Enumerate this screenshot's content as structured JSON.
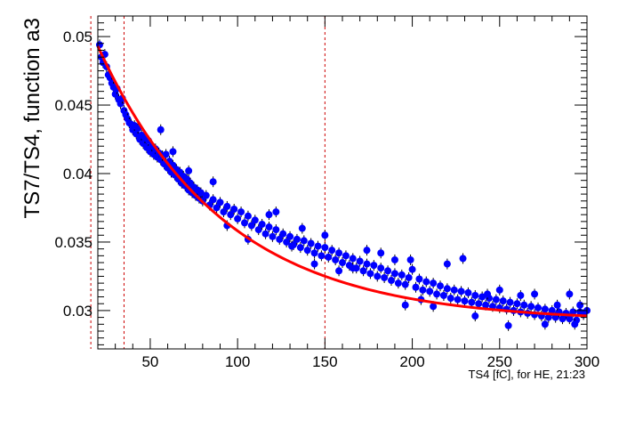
{
  "chart_data": {
    "type": "scatter",
    "title": "",
    "xlabel": "TS4 [fC], for HE, 21:23",
    "ylabel": "TS7/TS4, function a3",
    "xlim": [
      20,
      300
    ],
    "ylim": [
      0.0272,
      0.0515
    ],
    "x_ticks": [
      50,
      100,
      150,
      200,
      250,
      300
    ],
    "y_ticks": [
      0.03,
      0.035,
      0.04,
      0.045,
      0.05
    ],
    "x_tick_labels": [
      "50",
      "100",
      "150",
      "200",
      "250",
      "300"
    ],
    "y_tick_labels": [
      "0.03",
      "0.035",
      "0.04",
      "0.045",
      "0.05"
    ],
    "grid": false,
    "colors": {
      "points": "#0000ff",
      "fit": "#ff0000",
      "markers": "#cc0000"
    },
    "vertical_markers": [
      16,
      35,
      150
    ],
    "fit": {
      "model": "exponential",
      "x_range": [
        20,
        300
      ],
      "y_at_start": 0.0493,
      "asymptote": 0.0292,
      "decay_length": 72
    },
    "points": [
      [
        21,
        0.0494
      ],
      [
        22,
        0.0485
      ],
      [
        23,
        0.0481
      ],
      [
        24,
        0.0487
      ],
      [
        25,
        0.0478
      ],
      [
        26,
        0.0472
      ],
      [
        27,
        0.047
      ],
      [
        28,
        0.0466
      ],
      [
        29,
        0.0463
      ],
      [
        30,
        0.0458
      ],
      [
        31,
        0.0462
      ],
      [
        32,
        0.0454
      ],
      [
        33,
        0.0451
      ],
      [
        34,
        0.0455
      ],
      [
        35,
        0.0446
      ],
      [
        36,
        0.0443
      ],
      [
        37,
        0.044
      ],
      [
        38,
        0.0437
      ],
      [
        39,
        0.0436
      ],
      [
        40,
        0.0432
      ],
      [
        41,
        0.0435
      ],
      [
        42,
        0.0429
      ],
      [
        43,
        0.0433
      ],
      [
        44,
        0.0425
      ],
      [
        45,
        0.0428
      ],
      [
        46,
        0.0422
      ],
      [
        47,
        0.0426
      ],
      [
        48,
        0.0419
      ],
      [
        49,
        0.0424
      ],
      [
        50,
        0.0416
      ],
      [
        51,
        0.042
      ],
      [
        52,
        0.0414
      ],
      [
        53,
        0.0418
      ],
      [
        54,
        0.0412
      ],
      [
        55,
        0.0415
      ],
      [
        56,
        0.041
      ],
      [
        57,
        0.0413
      ],
      [
        58,
        0.0407
      ],
      [
        59,
        0.0414
      ],
      [
        60,
        0.0404
      ],
      [
        61,
        0.0409
      ],
      [
        62,
        0.0401
      ],
      [
        63,
        0.0406
      ],
      [
        64,
        0.0399
      ],
      [
        65,
        0.0403
      ],
      [
        66,
        0.0396
      ],
      [
        67,
        0.0401
      ],
      [
        68,
        0.0393
      ],
      [
        69,
        0.0398
      ],
      [
        70,
        0.0391
      ],
      [
        71,
        0.0396
      ],
      [
        72,
        0.0388
      ],
      [
        73,
        0.0393
      ],
      [
        74,
        0.0386
      ],
      [
        75,
        0.039
      ],
      [
        76,
        0.0384
      ],
      [
        77,
        0.0388
      ],
      [
        78,
        0.0382
      ],
      [
        79,
        0.0386
      ],
      [
        80,
        0.038
      ],
      [
        82,
        0.0384
      ],
      [
        84,
        0.0377
      ],
      [
        86,
        0.0381
      ],
      [
        88,
        0.0375
      ],
      [
        90,
        0.0379
      ],
      [
        92,
        0.0372
      ],
      [
        94,
        0.0376
      ],
      [
        96,
        0.037
      ],
      [
        98,
        0.0374
      ],
      [
        100,
        0.0367
      ],
      [
        102,
        0.0372
      ],
      [
        104,
        0.0364
      ],
      [
        106,
        0.0369
      ],
      [
        108,
        0.0362
      ],
      [
        110,
        0.0366
      ],
      [
        112,
        0.0359
      ],
      [
        114,
        0.0363
      ],
      [
        116,
        0.0356
      ],
      [
        118,
        0.0361
      ],
      [
        120,
        0.0354
      ],
      [
        122,
        0.0359
      ],
      [
        124,
        0.0352
      ],
      [
        126,
        0.0356
      ],
      [
        128,
        0.035
      ],
      [
        130,
        0.0354
      ],
      [
        132,
        0.0348
      ],
      [
        134,
        0.0352
      ],
      [
        136,
        0.0346
      ],
      [
        138,
        0.0351
      ],
      [
        140,
        0.0344
      ],
      [
        142,
        0.0349
      ],
      [
        144,
        0.0342
      ],
      [
        146,
        0.0347
      ],
      [
        148,
        0.034
      ],
      [
        150,
        0.0346
      ],
      [
        152,
        0.0339
      ],
      [
        154,
        0.0344
      ],
      [
        156,
        0.0337
      ],
      [
        158,
        0.0342
      ],
      [
        160,
        0.0335
      ],
      [
        162,
        0.034
      ],
      [
        164,
        0.0333
      ],
      [
        166,
        0.0338
      ],
      [
        168,
        0.0331
      ],
      [
        170,
        0.0336
      ],
      [
        172,
        0.0329
      ],
      [
        174,
        0.0334
      ],
      [
        176,
        0.0327
      ],
      [
        178,
        0.0333
      ],
      [
        180,
        0.0325
      ],
      [
        182,
        0.0331
      ],
      [
        184,
        0.0324
      ],
      [
        186,
        0.0329
      ],
      [
        188,
        0.0322
      ],
      [
        190,
        0.0327
      ],
      [
        192,
        0.032
      ],
      [
        194,
        0.0326
      ],
      [
        196,
        0.0319
      ],
      [
        198,
        0.0324
      ],
      [
        200,
        0.033
      ],
      [
        202,
        0.0317
      ],
      [
        204,
        0.0323
      ],
      [
        206,
        0.0315
      ],
      [
        208,
        0.0321
      ],
      [
        210,
        0.0314
      ],
      [
        212,
        0.032
      ],
      [
        214,
        0.0312
      ],
      [
        216,
        0.0318
      ],
      [
        218,
        0.0311
      ],
      [
        220,
        0.0316
      ],
      [
        222,
        0.0309
      ],
      [
        224,
        0.0315
      ],
      [
        226,
        0.0308
      ],
      [
        228,
        0.0314
      ],
      [
        230,
        0.0307
      ],
      [
        232,
        0.0313
      ],
      [
        234,
        0.0306
      ],
      [
        236,
        0.0311
      ],
      [
        238,
        0.0305
      ],
      [
        240,
        0.031
      ],
      [
        242,
        0.0304
      ],
      [
        244,
        0.0309
      ],
      [
        246,
        0.0303
      ],
      [
        248,
        0.0308
      ],
      [
        250,
        0.0302
      ],
      [
        252,
        0.0307
      ],
      [
        254,
        0.0301
      ],
      [
        256,
        0.0306
      ],
      [
        258,
        0.03
      ],
      [
        260,
        0.0305
      ],
      [
        262,
        0.0299
      ],
      [
        264,
        0.0304
      ],
      [
        266,
        0.0298
      ],
      [
        268,
        0.0303
      ],
      [
        270,
        0.0297
      ],
      [
        272,
        0.0302
      ],
      [
        274,
        0.0296
      ],
      [
        276,
        0.0301
      ],
      [
        278,
        0.0295
      ],
      [
        280,
        0.03
      ],
      [
        282,
        0.0295
      ],
      [
        284,
        0.0299
      ],
      [
        286,
        0.0294
      ],
      [
        288,
        0.0298
      ],
      [
        290,
        0.0294
      ],
      [
        292,
        0.0299
      ],
      [
        294,
        0.0293
      ],
      [
        296,
        0.0299
      ],
      [
        298,
        0.0297
      ],
      [
        300,
        0.03
      ],
      [
        56,
        0.0432
      ],
      [
        63,
        0.0416
      ],
      [
        72,
        0.0402
      ],
      [
        86,
        0.0394
      ],
      [
        94,
        0.0362
      ],
      [
        106,
        0.0352
      ],
      [
        118,
        0.037
      ],
      [
        122,
        0.0372
      ],
      [
        131,
        0.0347
      ],
      [
        137,
        0.036
      ],
      [
        144,
        0.0334
      ],
      [
        150,
        0.0355
      ],
      [
        158,
        0.0329
      ],
      [
        166,
        0.0331
      ],
      [
        174,
        0.0344
      ],
      [
        182,
        0.0342
      ],
      [
        190,
        0.0337
      ],
      [
        196,
        0.0304
      ],
      [
        199,
        0.0337
      ],
      [
        205,
        0.0308
      ],
      [
        212,
        0.0303
      ],
      [
        220,
        0.0334
      ],
      [
        229,
        0.0338
      ],
      [
        236,
        0.0296
      ],
      [
        243,
        0.0312
      ],
      [
        250,
        0.0315
      ],
      [
        255,
        0.0289
      ],
      [
        262,
        0.0311
      ],
      [
        270,
        0.0312
      ],
      [
        276,
        0.029
      ],
      [
        283,
        0.0304
      ],
      [
        290,
        0.0312
      ],
      [
        293,
        0.029
      ],
      [
        296,
        0.0304
      ]
    ]
  }
}
